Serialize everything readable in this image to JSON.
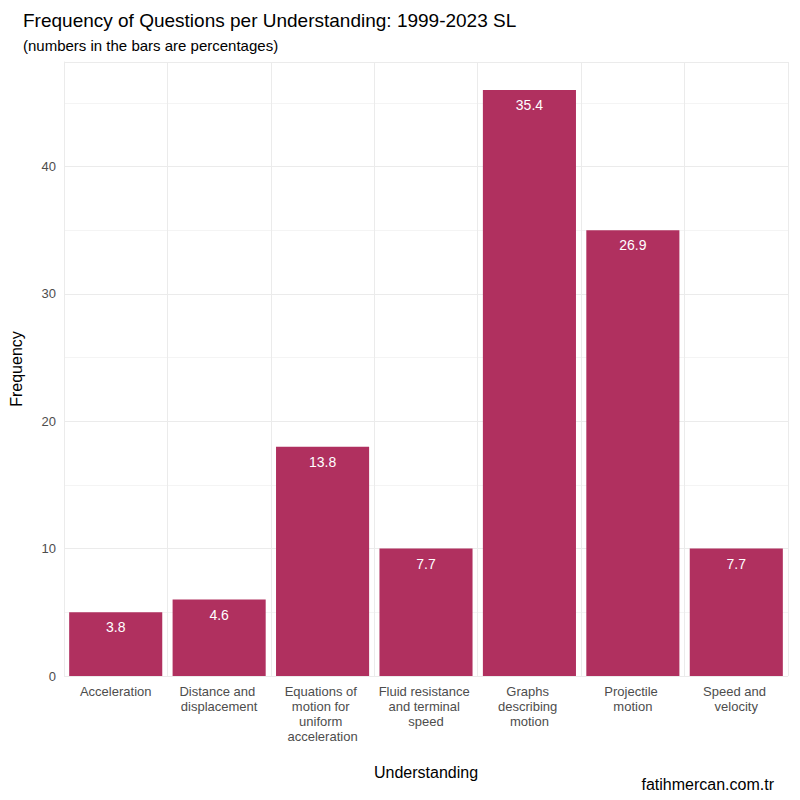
{
  "chart_data": {
    "type": "bar",
    "title": "Frequency of Questions per Understanding: 1999-2023 SL",
    "subtitle": "(numbers in the bars are percentages)",
    "x_label": "Understanding",
    "y_label": "Frequency",
    "caption": "fatihmercan.com.tr",
    "categories": [
      "Acceleration",
      "Distance and displacement",
      "Equations of motion for uniform acceleration",
      "Fluid resistance and terminal speed",
      "Graphs describing motion",
      "Projectile motion",
      "Speed and velocity"
    ],
    "values": [
      5,
      6,
      18,
      10,
      46,
      35,
      10
    ],
    "percentages": [
      3.8,
      4.6,
      13.8,
      7.7,
      35.4,
      26.9,
      7.7
    ],
    "color": "#b0305f",
    "ylim": [
      0,
      48.2
    ],
    "yticks": [
      0,
      10,
      20,
      30,
      40
    ],
    "grid": true
  }
}
